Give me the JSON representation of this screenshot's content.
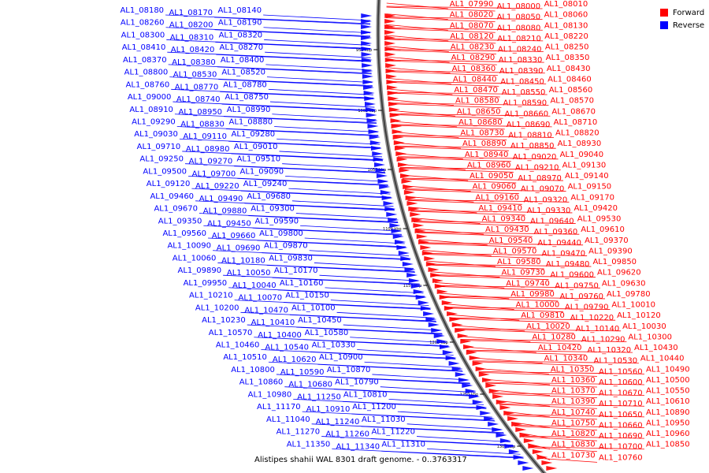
{
  "caption": "Alistipes shahii WAL 8301 draft genome. - 0..3763317",
  "legend": {
    "forward_label": "Forward",
    "reverse_label": "Reverse",
    "forward_color": "#ff0000",
    "reverse_color": "#0000ff"
  },
  "scale_ticks": [
    "950 kbp",
    "1000 kbp",
    "1050 kbp",
    "1100 kbp",
    "1150 kbp",
    "1200 kbp",
    "1250 kbp",
    "1300 kbp"
  ],
  "reverse_genes": [
    "AL1_08140",
    "AL1_08170",
    "AL1_08180",
    "AL1_08190",
    "AL1_08200",
    "AL1_08260",
    "AL1_08320",
    "AL1_08310",
    "AL1_08300",
    "AL1_08270",
    "AL1_08420",
    "AL1_08410",
    "AL1_08400",
    "AL1_08380",
    "AL1_08370",
    "AL1_08520",
    "AL1_08530",
    "AL1_08800",
    "AL1_08780",
    "AL1_08770",
    "AL1_08760",
    "AL1_08750",
    "AL1_08740",
    "AL1_09000",
    "AL1_08990",
    "AL1_08950",
    "AL1_08910",
    "AL1_08880",
    "AL1_08830",
    "AL1_09290",
    "AL1_09280",
    "AL1_09110",
    "AL1_09030",
    "AL1_09010",
    "AL1_08980",
    "AL1_09710",
    "AL1_09510",
    "AL1_09270",
    "AL1_09250",
    "AL1_09090",
    "AL1_09700",
    "AL1_09500",
    "AL1_09240",
    "AL1_09220",
    "AL1_09120",
    "AL1_09680",
    "AL1_09490",
    "AL1_09460",
    "AL1_09300",
    "AL1_09880",
    "AL1_09670",
    "AL1_09590",
    "AL1_09450",
    "AL1_09350",
    "AL1_09800",
    "AL1_09660",
    "AL1_09560",
    "AL1_09870",
    "AL1_09690",
    "AL1_10090",
    "AL1_09830",
    "AL1_10180",
    "AL1_10060",
    "AL1_10170",
    "AL1_10050",
    "AL1_09890",
    "AL1_10160",
    "AL1_10040",
    "AL1_09950",
    "AL1_10150",
    "AL1_10070",
    "AL1_10210",
    "AL1_10100",
    "AL1_10470",
    "AL1_10200",
    "AL1_10450",
    "AL1_10410",
    "AL1_10230",
    "AL1_10580",
    "AL1_10400",
    "AL1_10570",
    "AL1_10330",
    "AL1_10540",
    "AL1_10460",
    "AL1_10900",
    "AL1_10620",
    "AL1_10510",
    "AL1_10870",
    "AL1_10590",
    "AL1_10800",
    "AL1_10790",
    "AL1_10680",
    "AL1_10860",
    "AL1_10810",
    "AL1_11250",
    "AL1_10980",
    "AL1_11200",
    "AL1_10910",
    "AL1_11170",
    "AL1_11030",
    "AL1_11240",
    "AL1_11040",
    "AL1_11220",
    "AL1_11260",
    "AL1_11270",
    "AL1_11310",
    "AL1_11340",
    "AL1_11350"
  ],
  "forward_genes": [
    "AL1_07990",
    "AL1_08000",
    "AL1_08010",
    "AL1_08020",
    "AL1_08050",
    "AL1_08060",
    "AL1_08070",
    "AL1_08080",
    "AL1_08130",
    "AL1_08120",
    "AL1_08210",
    "AL1_08220",
    "AL1_08230",
    "AL1_08240",
    "AL1_08250",
    "AL1_08290",
    "AL1_08330",
    "AL1_08350",
    "AL1_08360",
    "AL1_08390",
    "AL1_08430",
    "AL1_08440",
    "AL1_08450",
    "AL1_08460",
    "AL1_08470",
    "AL1_08550",
    "AL1_08560",
    "AL1_08580",
    "AL1_08590",
    "AL1_08570",
    "AL1_08650",
    "AL1_08660",
    "AL1_08670",
    "AL1_08680",
    "AL1_08690",
    "AL1_08710",
    "AL1_08730",
    "AL1_08810",
    "AL1_08820",
    "AL1_08890",
    "AL1_08850",
    "AL1_08930",
    "AL1_08940",
    "AL1_09020",
    "AL1_09040",
    "AL1_08960",
    "AL1_09210",
    "AL1_09130",
    "AL1_09050",
    "AL1_08970",
    "AL1_09140",
    "AL1_09060",
    "AL1_09070",
    "AL1_09150",
    "AL1_09160",
    "AL1_09320",
    "AL1_09170",
    "AL1_09410",
    "AL1_09330",
    "AL1_09420",
    "AL1_09340",
    "AL1_09640",
    "AL1_09530",
    "AL1_09430",
    "AL1_09360",
    "AL1_09610",
    "AL1_09540",
    "AL1_09440",
    "AL1_09370",
    "AL1_09570",
    "AL1_09470",
    "AL1_09390",
    "AL1_09580",
    "AL1_09480",
    "AL1_09850",
    "AL1_09730",
    "AL1_09600",
    "AL1_09620",
    "AL1_09740",
    "AL1_09750",
    "AL1_09630",
    "AL1_09980",
    "AL1_09760",
    "AL1_09780",
    "AL1_10000",
    "AL1_09790",
    "AL1_10010",
    "AL1_09810",
    "AL1_10220",
    "AL1_10120",
    "AL1_10020",
    "AL1_10140",
    "AL1_10030",
    "AL1_10280",
    "AL1_10290",
    "AL1_10300",
    "AL1_10420",
    "AL1_10320",
    "AL1_10430",
    "AL1_10340",
    "AL1_10530",
    "AL1_10440",
    "AL1_10350",
    "AL1_10560",
    "AL1_10490",
    "AL1_10360",
    "AL1_10600",
    "AL1_10500",
    "AL1_10370",
    "AL1_10670",
    "AL1_10550",
    "AL1_10390",
    "AL1_10710",
    "AL1_10610",
    "AL1_10740",
    "AL1_10650",
    "AL1_10890",
    "AL1_10750",
    "AL1_10660",
    "AL1_10950",
    "AL1_10820",
    "AL1_10690",
    "AL1_10960",
    "AL1_10830",
    "AL1_10700",
    "AL1_10850",
    "AL1_10730",
    "AL1_10760"
  ]
}
